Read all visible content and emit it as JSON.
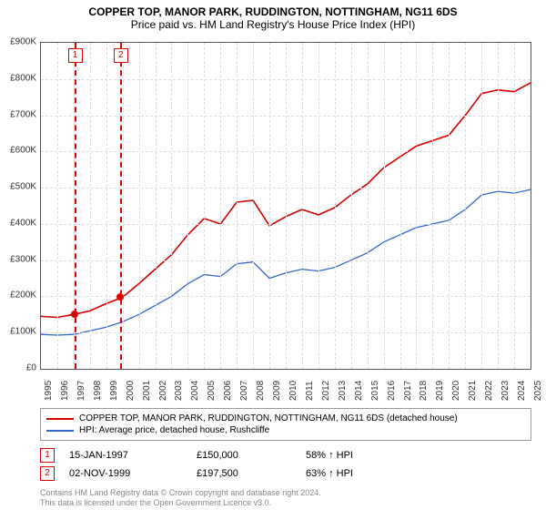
{
  "title": "COPPER TOP, MANOR PARK, RUDDINGTON, NOTTINGHAM, NG11 6DS",
  "subtitle": "Price paid vs. HM Land Registry's House Price Index (HPI)",
  "chart": {
    "type": "line",
    "xlim": [
      1995,
      2025
    ],
    "ylim": [
      0,
      900000
    ],
    "y_ticks": [
      0,
      100000,
      200000,
      300000,
      400000,
      500000,
      600000,
      700000,
      800000,
      900000
    ],
    "y_tick_labels": [
      "£0",
      "£100K",
      "£200K",
      "£300K",
      "£400K",
      "£500K",
      "£600K",
      "£700K",
      "£800K",
      "£900K"
    ],
    "x_ticks": [
      1995,
      1996,
      1997,
      1998,
      1999,
      2000,
      2001,
      2002,
      2003,
      2004,
      2005,
      2006,
      2007,
      2008,
      2009,
      2010,
      2011,
      2012,
      2013,
      2014,
      2015,
      2016,
      2017,
      2018,
      2019,
      2020,
      2021,
      2022,
      2023,
      2024,
      2025
    ],
    "grid_color": "#dddddd",
    "border_color": "#555555",
    "background_color": "#ffffff",
    "series": [
      {
        "label": "COPPER TOP, MANOR PARK, RUDDINGTON, NOTTINGHAM, NG11 6DS (detached house)",
        "color": "#d40000",
        "line_width": 1.6,
        "data": [
          [
            1995,
            145000
          ],
          [
            1996,
            142000
          ],
          [
            1997,
            150000
          ],
          [
            1998,
            160000
          ],
          [
            1999,
            180000
          ],
          [
            2000,
            197500
          ],
          [
            2001,
            235000
          ],
          [
            2002,
            275000
          ],
          [
            2003,
            315000
          ],
          [
            2004,
            370000
          ],
          [
            2005,
            415000
          ],
          [
            2006,
            400000
          ],
          [
            2007,
            460000
          ],
          [
            2008,
            465000
          ],
          [
            2009,
            395000
          ],
          [
            2010,
            420000
          ],
          [
            2011,
            440000
          ],
          [
            2012,
            425000
          ],
          [
            2013,
            445000
          ],
          [
            2014,
            480000
          ],
          [
            2015,
            510000
          ],
          [
            2016,
            555000
          ],
          [
            2017,
            585000
          ],
          [
            2018,
            615000
          ],
          [
            2019,
            630000
          ],
          [
            2020,
            645000
          ],
          [
            2021,
            700000
          ],
          [
            2022,
            760000
          ],
          [
            2023,
            770000
          ],
          [
            2024,
            765000
          ],
          [
            2025,
            790000
          ]
        ]
      },
      {
        "label": "HPI: Average price, detached house, Rushcliffe",
        "color": "#3366cc",
        "line_width": 1.3,
        "data": [
          [
            1995,
            95000
          ],
          [
            1996,
            93000
          ],
          [
            1997,
            95000
          ],
          [
            1998,
            105000
          ],
          [
            1999,
            115000
          ],
          [
            2000,
            130000
          ],
          [
            2001,
            150000
          ],
          [
            2002,
            175000
          ],
          [
            2003,
            200000
          ],
          [
            2004,
            235000
          ],
          [
            2005,
            260000
          ],
          [
            2006,
            255000
          ],
          [
            2007,
            290000
          ],
          [
            2008,
            295000
          ],
          [
            2009,
            250000
          ],
          [
            2010,
            265000
          ],
          [
            2011,
            275000
          ],
          [
            2012,
            270000
          ],
          [
            2013,
            280000
          ],
          [
            2014,
            300000
          ],
          [
            2015,
            320000
          ],
          [
            2016,
            350000
          ],
          [
            2017,
            370000
          ],
          [
            2018,
            390000
          ],
          [
            2019,
            400000
          ],
          [
            2020,
            410000
          ],
          [
            2021,
            440000
          ],
          [
            2022,
            480000
          ],
          [
            2023,
            490000
          ],
          [
            2024,
            485000
          ],
          [
            2025,
            495000
          ]
        ]
      }
    ],
    "sale_markers": [
      {
        "index": "1",
        "x": 1997.04,
        "y": 150000
      },
      {
        "index": "2",
        "x": 1999.84,
        "y": 197500
      }
    ],
    "label_fontsize": 10,
    "title_fontsize": 12
  },
  "legend": {
    "row1_label": "COPPER TOP, MANOR PARK, RUDDINGTON, NOTTINGHAM, NG11 6DS (detached house)",
    "row1_color": "#d40000",
    "row2_label": "HPI: Average price, detached house, Rushcliffe",
    "row2_color": "#3366cc"
  },
  "sales": [
    {
      "index": "1",
      "date": "15-JAN-1997",
      "price": "£150,000",
      "hpi": "58% ↑ HPI"
    },
    {
      "index": "2",
      "date": "02-NOV-1999",
      "price": "£197,500",
      "hpi": "63% ↑ HPI"
    }
  ],
  "footer": {
    "line1": "Contains HM Land Registry data © Crown copyright and database right 2024.",
    "line2": "This data is licensed under the Open Government Licence v3.0."
  }
}
